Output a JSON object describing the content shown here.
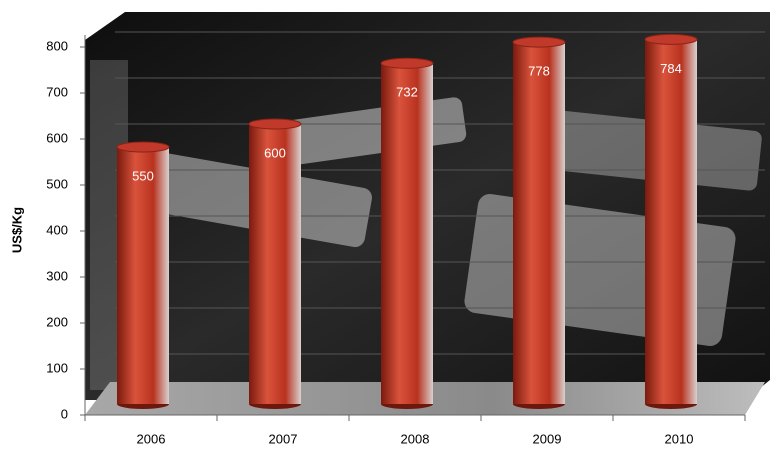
{
  "chart_data": {
    "type": "bar",
    "y_label": "US$/Kg",
    "categories": [
      "2006",
      "2007",
      "2008",
      "2009",
      "2010"
    ],
    "values": [
      550,
      600,
      732,
      778,
      784
    ],
    "color": "#c0392b",
    "ylim": [
      0,
      800
    ],
    "yticks": [
      0,
      100,
      200,
      300,
      400,
      500,
      600,
      700,
      800
    ],
    "grid": true
  }
}
